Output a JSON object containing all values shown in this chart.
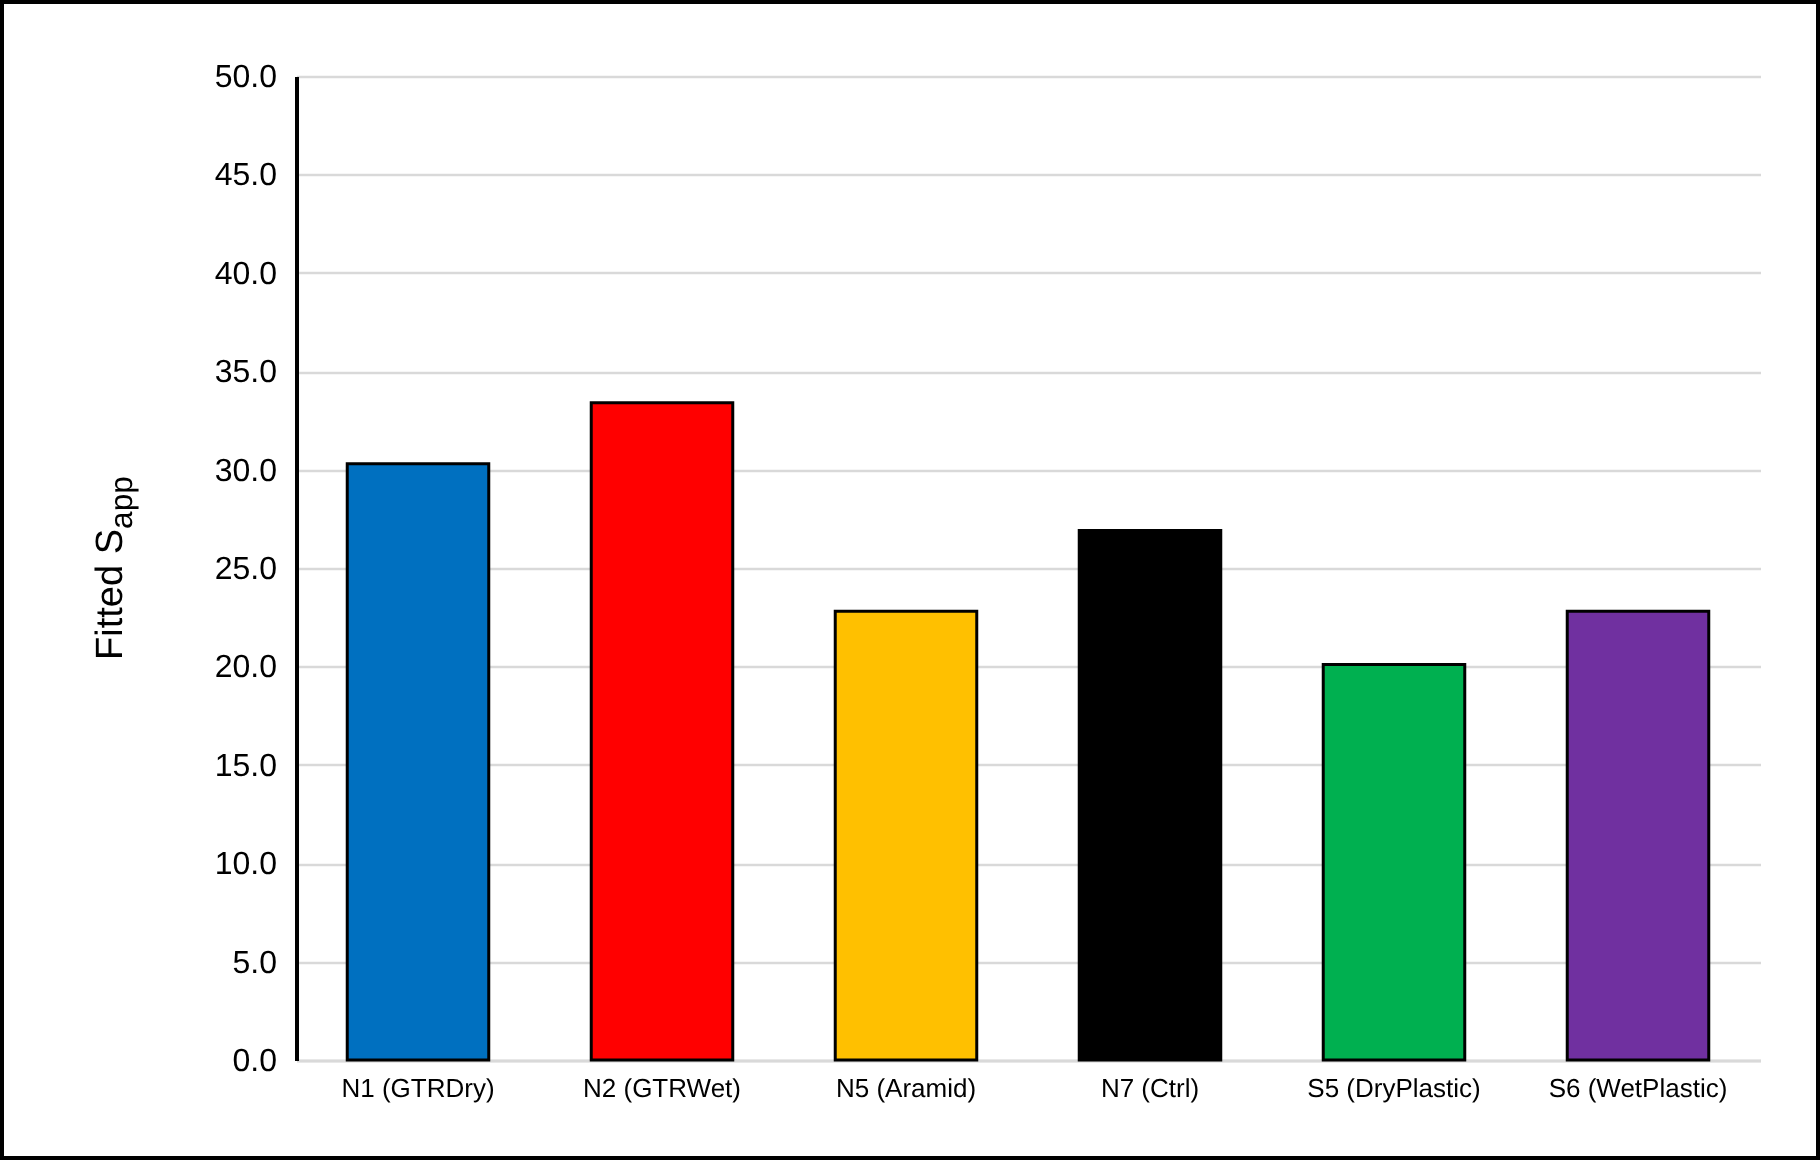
{
  "chart_data": {
    "type": "bar",
    "ylabel": "Fitted S$_{app}$",
    "categories": [
      "N1 (GTRDry)",
      "N2 (GTRWet)",
      "N5 (Aramid)",
      "N7 (Ctrl)",
      "S5 (DryPlastic)",
      "S6 (WetPlastic)"
    ],
    "values": [
      30.3,
      33.4,
      22.8,
      26.9,
      20.1,
      22.8
    ],
    "colors": [
      "#0070c0",
      "#ff0000",
      "#ffc000",
      "#000000",
      "#00b050",
      "#7030a0"
    ],
    "ylim": [
      0,
      50
    ],
    "yticks": [
      {
        "value": 0,
        "label": "0.0"
      },
      {
        "value": 5,
        "label": "5.0"
      },
      {
        "value": 10,
        "label": "10.0"
      },
      {
        "value": 15,
        "label": "15.0"
      },
      {
        "value": 20,
        "label": "20.0"
      },
      {
        "value": 25,
        "label": "25.0"
      },
      {
        "value": 30,
        "label": "30.0"
      },
      {
        "value": 35,
        "label": "35.0"
      },
      {
        "value": 40,
        "label": "40.0"
      },
      {
        "value": 45,
        "label": "45.0"
      },
      {
        "value": 50,
        "label": "50.0"
      }
    ],
    "grid": "y"
  }
}
